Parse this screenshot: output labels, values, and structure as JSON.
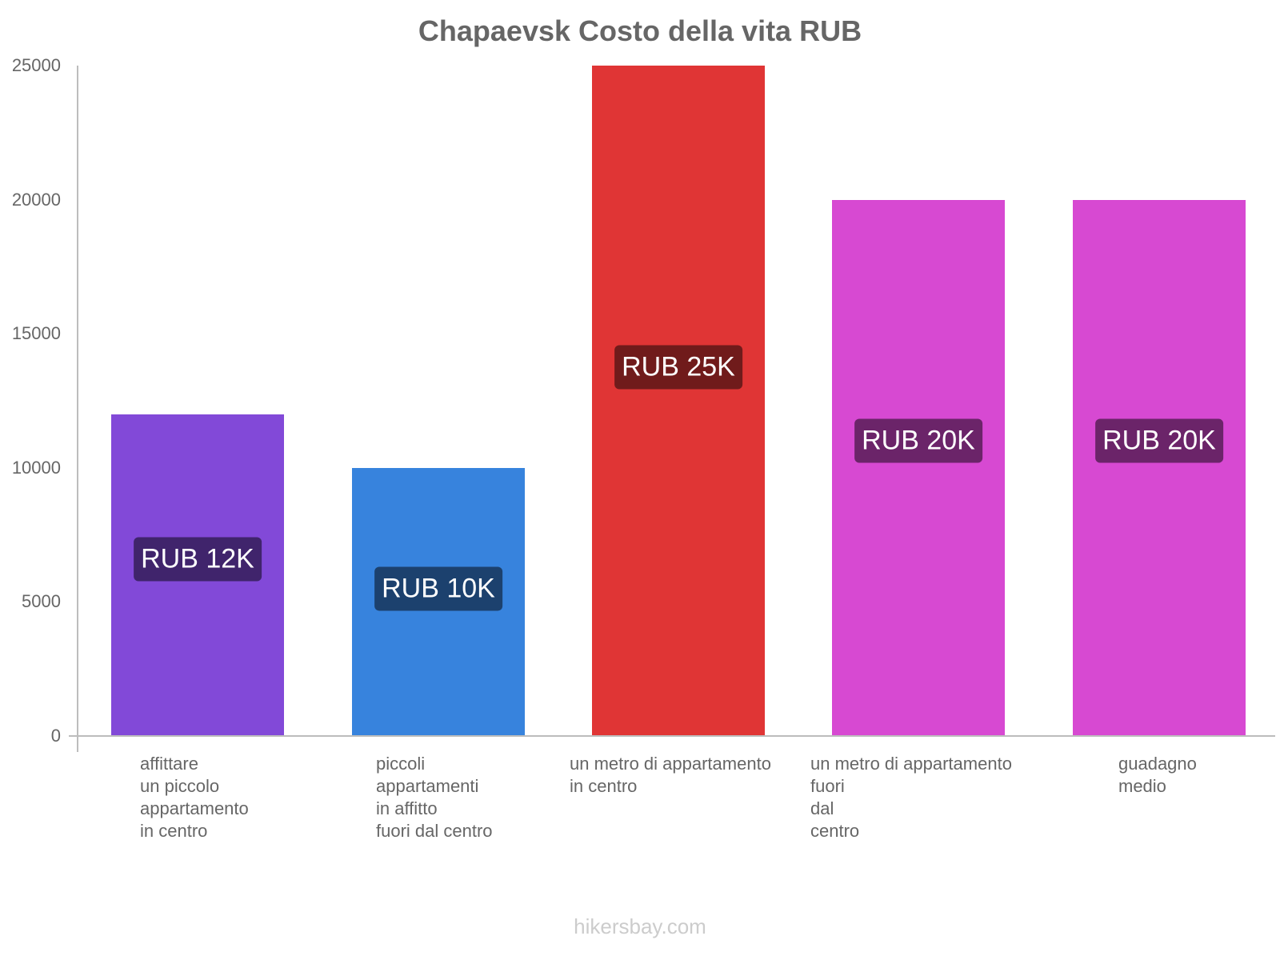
{
  "chart_data": {
    "type": "bar",
    "title": "Chapaevsk Costo della vita RUB",
    "xlabel": "",
    "ylabel": "",
    "ylim": [
      0,
      25000
    ],
    "yticks": [
      "0",
      "5000",
      "10000",
      "15000",
      "20000",
      "25000"
    ],
    "grid": false,
    "legend": null,
    "categories": [
      "affittare\nun piccolo\nappartamento\nin centro",
      "piccoli\nappartamenti\nin affitto\nfuori dal centro",
      "un metro di appartamento\nin centro",
      "un metro di appartamento\nfuori\ndal\ncentro",
      "guadagno\nmedio"
    ],
    "values": [
      12000,
      10000,
      25000,
      20000,
      20000
    ],
    "data_labels": [
      "RUB 12K",
      "RUB 10K",
      "RUB 25K",
      "RUB 20K",
      "RUB 20K"
    ],
    "colors": [
      "#8249d8",
      "#3783dd",
      "#e03535",
      "#d749d2",
      "#d749d2"
    ],
    "label_bg_colors": [
      "#40246c",
      "#1c416e",
      "#701b1b",
      "#6b2469",
      "#6b2469"
    ]
  },
  "footer": "hikersbay.com"
}
